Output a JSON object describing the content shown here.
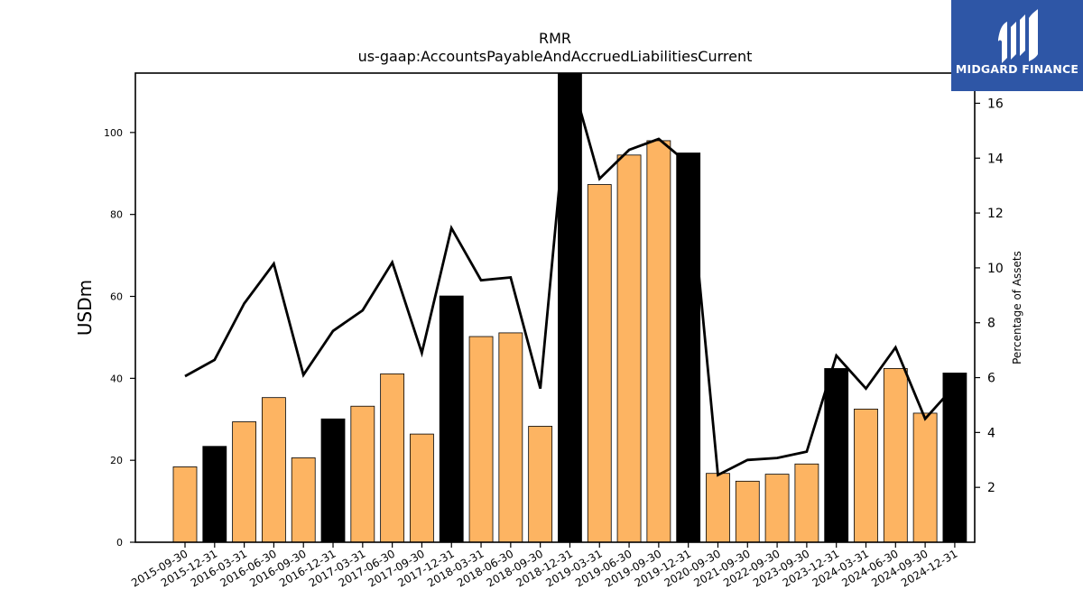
{
  "chart_data": {
    "type": "bar",
    "title": "RMR",
    "subtitle": "us-gaap:AccountsPayableAndAccruedLiabilitiesCurrent",
    "ylabel": "USDm",
    "y2label": "Percentage of Assets",
    "ylim": [
      0,
      114.5
    ],
    "y2lim": [
      0,
      17.1
    ],
    "yticks": [
      0,
      20,
      40,
      60,
      80,
      100
    ],
    "y2ticks": [
      2,
      4,
      6,
      8,
      10,
      12,
      14,
      16
    ],
    "grid": false,
    "categories": [
      "2015-09-30",
      "2015-12-31",
      "2016-03-31",
      "2016-06-30",
      "2016-09-30",
      "2016-12-31",
      "2017-03-31",
      "2017-06-30",
      "2017-09-30",
      "2017-12-31",
      "2018-03-31",
      "2018-06-30",
      "2018-09-30",
      "2018-12-31",
      "2019-03-31",
      "2019-06-30",
      "2019-09-30",
      "2019-12-31",
      "2020-09-30",
      "2021-09-30",
      "2022-09-30",
      "2023-09-30",
      "2023-12-31",
      "2024-03-31",
      "2024-06-30",
      "2024-09-30",
      "2024-12-31"
    ],
    "series": [
      {
        "type": "bar",
        "axis": "left",
        "values": [
          18.4,
          23.4,
          29.4,
          35.3,
          20.6,
          30.1,
          33.2,
          41.1,
          26.4,
          60.1,
          50.2,
          51.1,
          28.3,
          115.5,
          87.3,
          94.5,
          98.0,
          95.0,
          16.8,
          14.9,
          16.6,
          19.1,
          42.4,
          32.5,
          42.4,
          31.5,
          41.3
        ],
        "highlight": [
          false,
          true,
          false,
          false,
          false,
          true,
          false,
          false,
          false,
          true,
          false,
          false,
          false,
          true,
          false,
          false,
          false,
          true,
          false,
          false,
          false,
          false,
          true,
          false,
          false,
          false,
          true
        ],
        "color": "#fdb462",
        "highlight_color": "#000000"
      },
      {
        "type": "line",
        "axis": "right",
        "color": "#000000",
        "values": [
          6.05,
          6.65,
          8.7,
          10.15,
          6.1,
          7.7,
          8.45,
          10.2,
          6.9,
          11.45,
          9.55,
          9.65,
          5.6,
          17.1,
          13.25,
          14.3,
          14.7,
          13.8,
          2.45,
          3.0,
          3.07,
          3.3,
          6.8,
          5.6,
          7.1,
          4.5,
          5.7
        ]
      }
    ]
  },
  "logo": {
    "text": "MIDGARD FINANCE",
    "color": "#2e56a6"
  }
}
